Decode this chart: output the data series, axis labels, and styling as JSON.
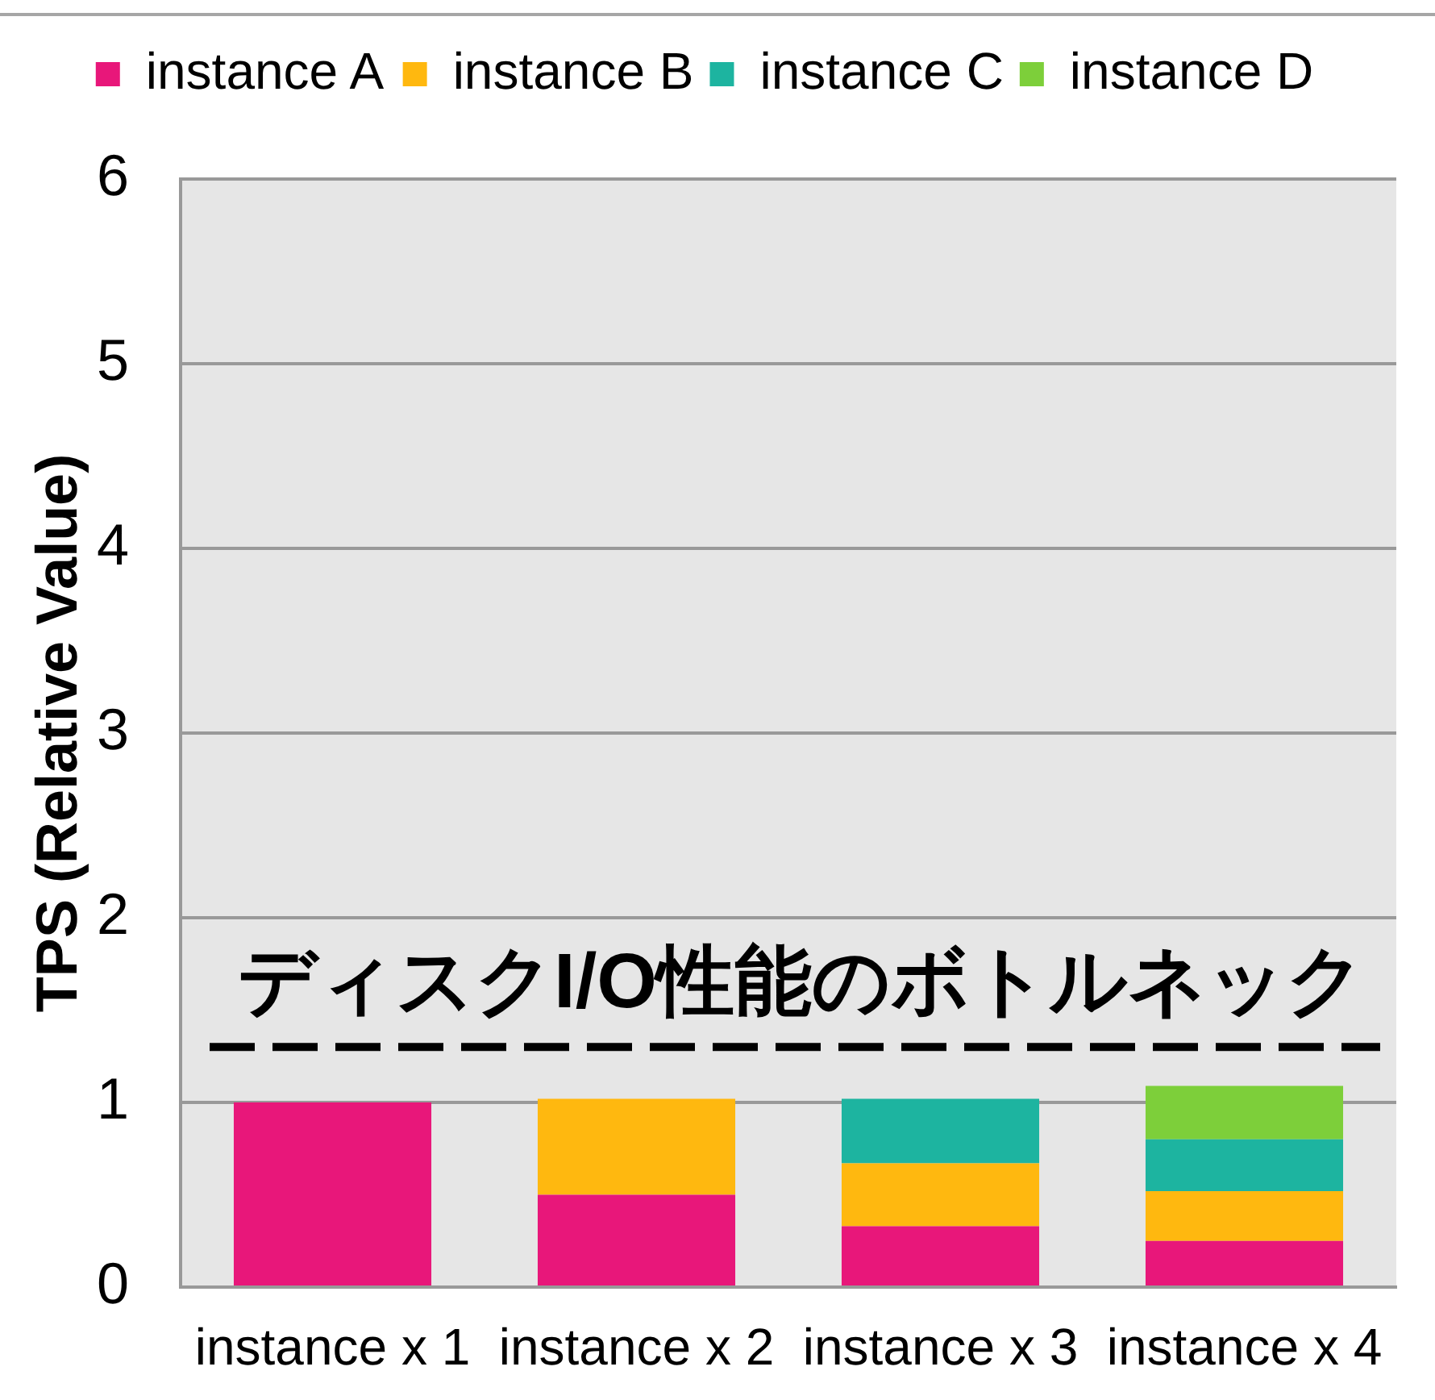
{
  "chart_data": {
    "type": "bar",
    "stacked": true,
    "categories": [
      "instance x 1",
      "instance x 2",
      "instance x 3",
      "instance x 4"
    ],
    "series": [
      {
        "name": "instance A",
        "color": "#e8177a",
        "values": [
          1.0,
          0.5,
          0.33,
          0.25
        ]
      },
      {
        "name": "instance B",
        "color": "#ffb80f",
        "values": [
          null,
          0.52,
          0.34,
          0.27
        ]
      },
      {
        "name": "instance C",
        "color": "#1db4a0",
        "values": [
          null,
          null,
          0.35,
          0.28
        ]
      },
      {
        "name": "instance D",
        "color": "#7dcf3a",
        "values": [
          null,
          null,
          null,
          0.29
        ]
      }
    ],
    "ylabel": "TPS (Relative Value)",
    "ylim": [
      0,
      6
    ],
    "yticks": [
      0,
      1,
      2,
      3,
      4,
      5,
      6
    ],
    "grid": "y",
    "legend": "top",
    "ref_lines": [
      {
        "axis": "y",
        "value": 1.3,
        "label": "ディスクI/O性能のボトルネック",
        "color": "#000000",
        "line_style": "dashed"
      }
    ]
  }
}
